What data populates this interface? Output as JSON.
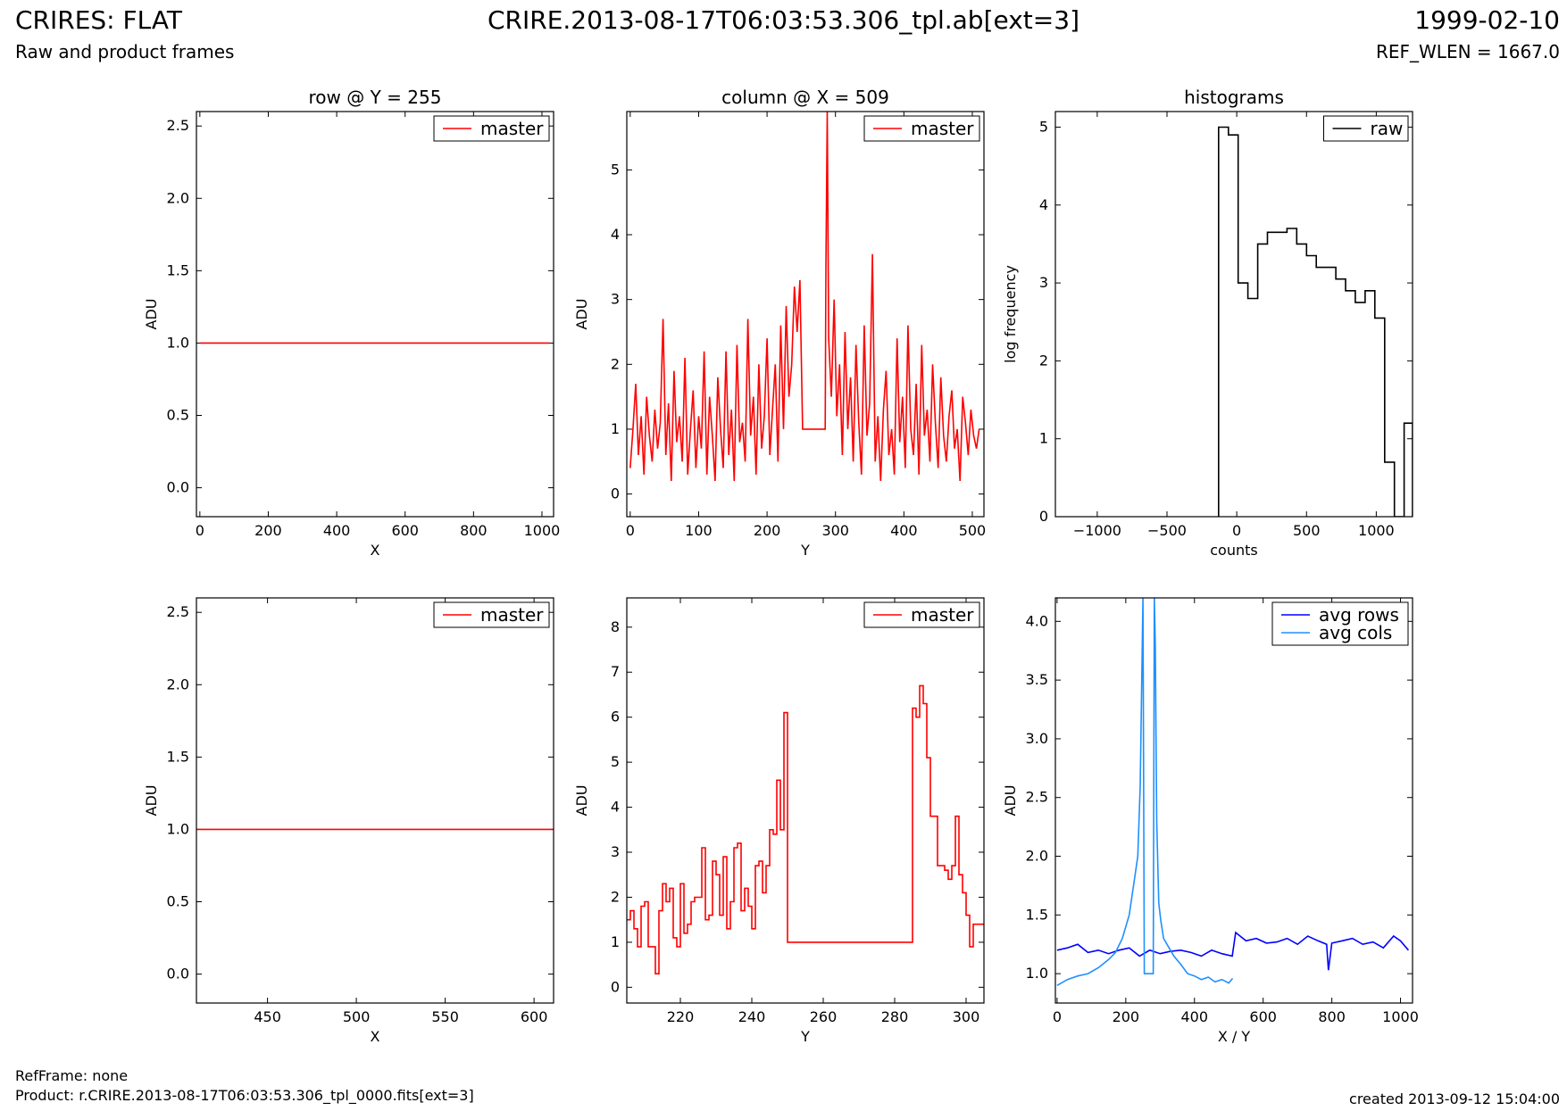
{
  "header": {
    "left_title": "CRIRES: FLAT",
    "left_subtitle": "Raw and product frames",
    "center_title": "CRIRE.2013-08-17T06:03:53.306_tpl.ab[ext=3]",
    "right_title": "1999-02-10",
    "right_subtitle": "REF_WLEN = 1667.0"
  },
  "footer": {
    "ref_frame": "RefFrame: none",
    "product": "Product: r.CRIRE.2013-08-17T06:03:53.306_tpl_0000.fits[ext=3]",
    "created": "created 2013-09-12 15:04:00"
  },
  "colors": {
    "master": "#ff0000",
    "raw": "#000000",
    "avg_rows": "#0000ff",
    "avg_cols": "#1e90ff"
  },
  "chart_data": [
    {
      "type": "line",
      "title": "row @ Y = 255",
      "xlabel": "X",
      "ylabel": "ADU",
      "xlim": [
        -10,
        1034
      ],
      "ylim": [
        -0.2,
        2.6
      ],
      "xticks": [
        0,
        200,
        400,
        600,
        800,
        1000
      ],
      "yticks": [
        0.0,
        0.5,
        1.0,
        1.5,
        2.0,
        2.5
      ],
      "ytick_labels": [
        "0.0",
        "0.5",
        "1.0",
        "1.5",
        "2.0",
        "2.5"
      ],
      "legend": "top-right",
      "series": [
        {
          "name": "master",
          "color": "#ff0000",
          "x": [
            0,
            1023
          ],
          "y": [
            1.0,
            1.0
          ]
        }
      ]
    },
    {
      "type": "line",
      "title": "column @ X = 509",
      "xlabel": "Y",
      "ylabel": "ADU",
      "xlim": [
        -5,
        517
      ],
      "ylim": [
        -0.35,
        5.9
      ],
      "xticks": [
        0,
        100,
        200,
        300,
        400,
        500
      ],
      "yticks": [
        0,
        1,
        2,
        3,
        4,
        5
      ],
      "ytick_labels": [
        "0",
        "1",
        "2",
        "3",
        "4",
        "5"
      ],
      "legend": "top-right",
      "series": [
        {
          "name": "master",
          "color": "#ff0000",
          "x": [
            0,
            4,
            8,
            12,
            16,
            20,
            24,
            28,
            32,
            36,
            40,
            44,
            48,
            52,
            56,
            60,
            64,
            68,
            72,
            76,
            80,
            84,
            88,
            92,
            96,
            100,
            104,
            108,
            112,
            116,
            120,
            124,
            128,
            132,
            136,
            140,
            144,
            148,
            152,
            156,
            160,
            164,
            168,
            172,
            176,
            180,
            184,
            188,
            192,
            196,
            200,
            204,
            208,
            212,
            216,
            220,
            224,
            228,
            232,
            236,
            240,
            244,
            248,
            252,
            253,
            285,
            286,
            288,
            290,
            294,
            298,
            302,
            306,
            310,
            314,
            318,
            322,
            326,
            330,
            334,
            338,
            342,
            346,
            350,
            354,
            358,
            362,
            366,
            370,
            374,
            378,
            382,
            386,
            390,
            394,
            398,
            402,
            406,
            410,
            414,
            418,
            422,
            426,
            430,
            434,
            438,
            442,
            446,
            450,
            454,
            458,
            462,
            466,
            470,
            474,
            478,
            482,
            486,
            490,
            494,
            498,
            502,
            506,
            510
          ],
          "y": [
            0.4,
            1.0,
            1.7,
            0.6,
            1.2,
            0.3,
            1.5,
            0.9,
            0.5,
            1.3,
            0.7,
            1.1,
            2.7,
            0.6,
            1.4,
            0.2,
            1.9,
            0.8,
            1.2,
            0.5,
            2.1,
            0.3,
            1.0,
            1.6,
            0.4,
            1.2,
            0.7,
            2.2,
            0.3,
            1.5,
            0.9,
            0.2,
            1.8,
            1.0,
            0.4,
            2.2,
            0.6,
            1.3,
            0.2,
            2.3,
            0.8,
            1.1,
            0.5,
            2.7,
            0.9,
            1.5,
            0.3,
            2.0,
            0.7,
            1.2,
            2.4,
            0.6,
            1.3,
            2.0,
            0.5,
            2.6,
            1.0,
            2.9,
            1.5,
            2.0,
            3.2,
            2.5,
            3.3,
            1.0,
            1.0,
            1.0,
            3.5,
            5.9,
            2.4,
            1.5,
            3.0,
            1.2,
            2.0,
            0.6,
            2.5,
            1.0,
            1.8,
            0.5,
            2.3,
            1.1,
            0.3,
            2.6,
            0.9,
            1.4,
            3.7,
            0.5,
            1.2,
            0.2,
            1.3,
            1.9,
            0.6,
            1.0,
            0.3,
            2.4,
            0.8,
            1.5,
            0.4,
            2.6,
            1.0,
            0.6,
            1.7,
            0.3,
            2.3,
            0.9,
            1.3,
            0.5,
            2.0,
            1.1,
            0.4,
            1.8,
            0.9,
            0.5,
            1.2,
            1.6,
            0.7,
            1.0,
            0.2,
            1.5,
            1.1,
            0.6,
            1.3,
            0.9,
            0.7,
            1.0
          ]
        }
      ]
    },
    {
      "type": "line",
      "title": "histograms",
      "xlabel": "counts",
      "ylabel": "log frequency",
      "xlim": [
        -1300,
        1260
      ],
      "ylim": [
        0,
        5.2
      ],
      "xticks": [
        -1000,
        -500,
        0,
        500,
        1000
      ],
      "xtick_labels": [
        "−1000",
        "−500",
        "0",
        "500",
        "1000"
      ],
      "yticks": [
        0,
        1,
        2,
        3,
        4,
        5
      ],
      "ytick_labels": [
        "0",
        "1",
        "2",
        "3",
        "4",
        "5"
      ],
      "legend": "top-right",
      "series": [
        {
          "name": "raw",
          "color": "#000000",
          "step": true,
          "edges": [
            -130,
            -60,
            10,
            80,
            150,
            220,
            290,
            360,
            430,
            500,
            570,
            640,
            710,
            780,
            850,
            920,
            990,
            1060,
            1130,
            1200,
            1260
          ],
          "values": [
            5.0,
            4.9,
            3.0,
            2.8,
            3.5,
            3.65,
            3.65,
            3.7,
            3.5,
            3.35,
            3.2,
            3.2,
            3.05,
            2.9,
            2.75,
            2.9,
            2.55,
            0.7,
            0,
            1.2
          ]
        }
      ]
    },
    {
      "type": "line",
      "title": "",
      "xlabel": "X",
      "ylabel": "ADU",
      "xlim": [
        410,
        611
      ],
      "ylim": [
        -0.2,
        2.6
      ],
      "xticks": [
        450,
        500,
        550,
        600
      ],
      "yticks": [
        0.0,
        0.5,
        1.0,
        1.5,
        2.0,
        2.5
      ],
      "ytick_labels": [
        "0.0",
        "0.5",
        "1.0",
        "1.5",
        "2.0",
        "2.5"
      ],
      "legend": "top-right",
      "series": [
        {
          "name": "master",
          "color": "#ff0000",
          "x": [
            410,
            611
          ],
          "y": [
            1.0,
            1.0
          ]
        }
      ]
    },
    {
      "type": "line",
      "title": "",
      "xlabel": "Y",
      "ylabel": "ADU",
      "xlim": [
        205,
        305
      ],
      "ylim": [
        -0.35,
        8.65
      ],
      "xticks": [
        220,
        240,
        260,
        280,
        300
      ],
      "yticks": [
        0,
        1,
        2,
        3,
        4,
        5,
        6,
        7,
        8
      ],
      "ytick_labels": [
        "0",
        "1",
        "2",
        "3",
        "4",
        "5",
        "6",
        "7",
        "8"
      ],
      "legend": "top-right",
      "series": [
        {
          "name": "master",
          "color": "#ff0000",
          "step": true,
          "x": [
            205,
            206,
            207,
            208,
            209,
            210,
            211,
            212,
            213,
            214,
            215,
            216,
            217,
            218,
            219,
            220,
            221,
            222,
            223,
            224,
            225,
            226,
            227,
            228,
            229,
            230,
            231,
            232,
            233,
            234,
            235,
            236,
            237,
            238,
            239,
            240,
            241,
            242,
            243,
            244,
            245,
            246,
            247,
            248,
            249,
            250,
            251,
            252,
            253,
            285,
            286,
            287,
            288,
            289,
            290,
            291,
            292,
            293,
            294,
            295,
            296,
            297,
            298,
            299,
            300,
            301,
            302,
            303,
            304
          ],
          "y": [
            1.5,
            1.7,
            1.3,
            0.9,
            1.8,
            1.9,
            0.9,
            0.9,
            0.3,
            1.7,
            2.3,
            1.9,
            2.2,
            1.1,
            0.9,
            2.3,
            1.2,
            1.4,
            1.9,
            2.0,
            2.0,
            3.1,
            1.5,
            1.6,
            2.8,
            2.5,
            1.6,
            2.9,
            1.3,
            1.9,
            3.1,
            3.2,
            1.7,
            2.2,
            1.8,
            1.3,
            2.7,
            2.8,
            2.1,
            2.7,
            3.5,
            3.4,
            4.6,
            3.5,
            6.1,
            1.0,
            1.0,
            1.0,
            1.0,
            6.2,
            6.0,
            6.7,
            6.3,
            5.1,
            3.8,
            3.8,
            2.7,
            2.7,
            2.6,
            2.4,
            2.7,
            3.8,
            2.5,
            2.1,
            1.6,
            0.9,
            1.4,
            1.4,
            1.4
          ]
        }
      ]
    },
    {
      "type": "line",
      "title": "",
      "xlabel": "X / Y",
      "ylabel": "ADU",
      "xlim": [
        -5,
        1035
      ],
      "ylim": [
        0.75,
        4.2
      ],
      "xticks": [
        0,
        200,
        400,
        600,
        800,
        1000
      ],
      "yticks": [
        1.0,
        1.5,
        2.0,
        2.5,
        3.0,
        3.5,
        4.0
      ],
      "ytick_labels": [
        "1.0",
        "1.5",
        "2.0",
        "2.5",
        "3.0",
        "3.5",
        "4.0"
      ],
      "legend": "top-right",
      "series": [
        {
          "name": "avg rows",
          "color": "#0000ff",
          "x": [
            0,
            30,
            60,
            90,
            120,
            150,
            180,
            210,
            240,
            270,
            300,
            330,
            360,
            390,
            420,
            450,
            480,
            510,
            520,
            550,
            580,
            610,
            640,
            670,
            700,
            730,
            760,
            785,
            790,
            800,
            830,
            860,
            890,
            920,
            950,
            980,
            1000,
            1023
          ],
          "y": [
            1.2,
            1.22,
            1.25,
            1.18,
            1.2,
            1.17,
            1.2,
            1.22,
            1.15,
            1.2,
            1.17,
            1.19,
            1.2,
            1.18,
            1.15,
            1.2,
            1.17,
            1.15,
            1.35,
            1.28,
            1.3,
            1.26,
            1.27,
            1.3,
            1.25,
            1.32,
            1.28,
            1.25,
            1.03,
            1.26,
            1.28,
            1.3,
            1.25,
            1.27,
            1.22,
            1.32,
            1.28,
            1.2
          ]
        },
        {
          "name": "avg cols",
          "color": "#1e90ff",
          "x": [
            0,
            30,
            60,
            90,
            120,
            150,
            170,
            190,
            210,
            225,
            235,
            242,
            250,
            254,
            260,
            280,
            283,
            286,
            290,
            296,
            302,
            310,
            320,
            340,
            360,
            380,
            400,
            420,
            440,
            460,
            480,
            500,
            511
          ],
          "y": [
            0.9,
            0.95,
            0.98,
            1.0,
            1.05,
            1.12,
            1.18,
            1.3,
            1.5,
            1.8,
            2.0,
            2.6,
            4.2,
            1.0,
            1.0,
            1.0,
            4.2,
            3.8,
            2.3,
            1.6,
            1.45,
            1.3,
            1.25,
            1.15,
            1.08,
            1.0,
            0.98,
            0.95,
            0.97,
            0.93,
            0.95,
            0.92,
            0.96
          ]
        }
      ]
    }
  ]
}
